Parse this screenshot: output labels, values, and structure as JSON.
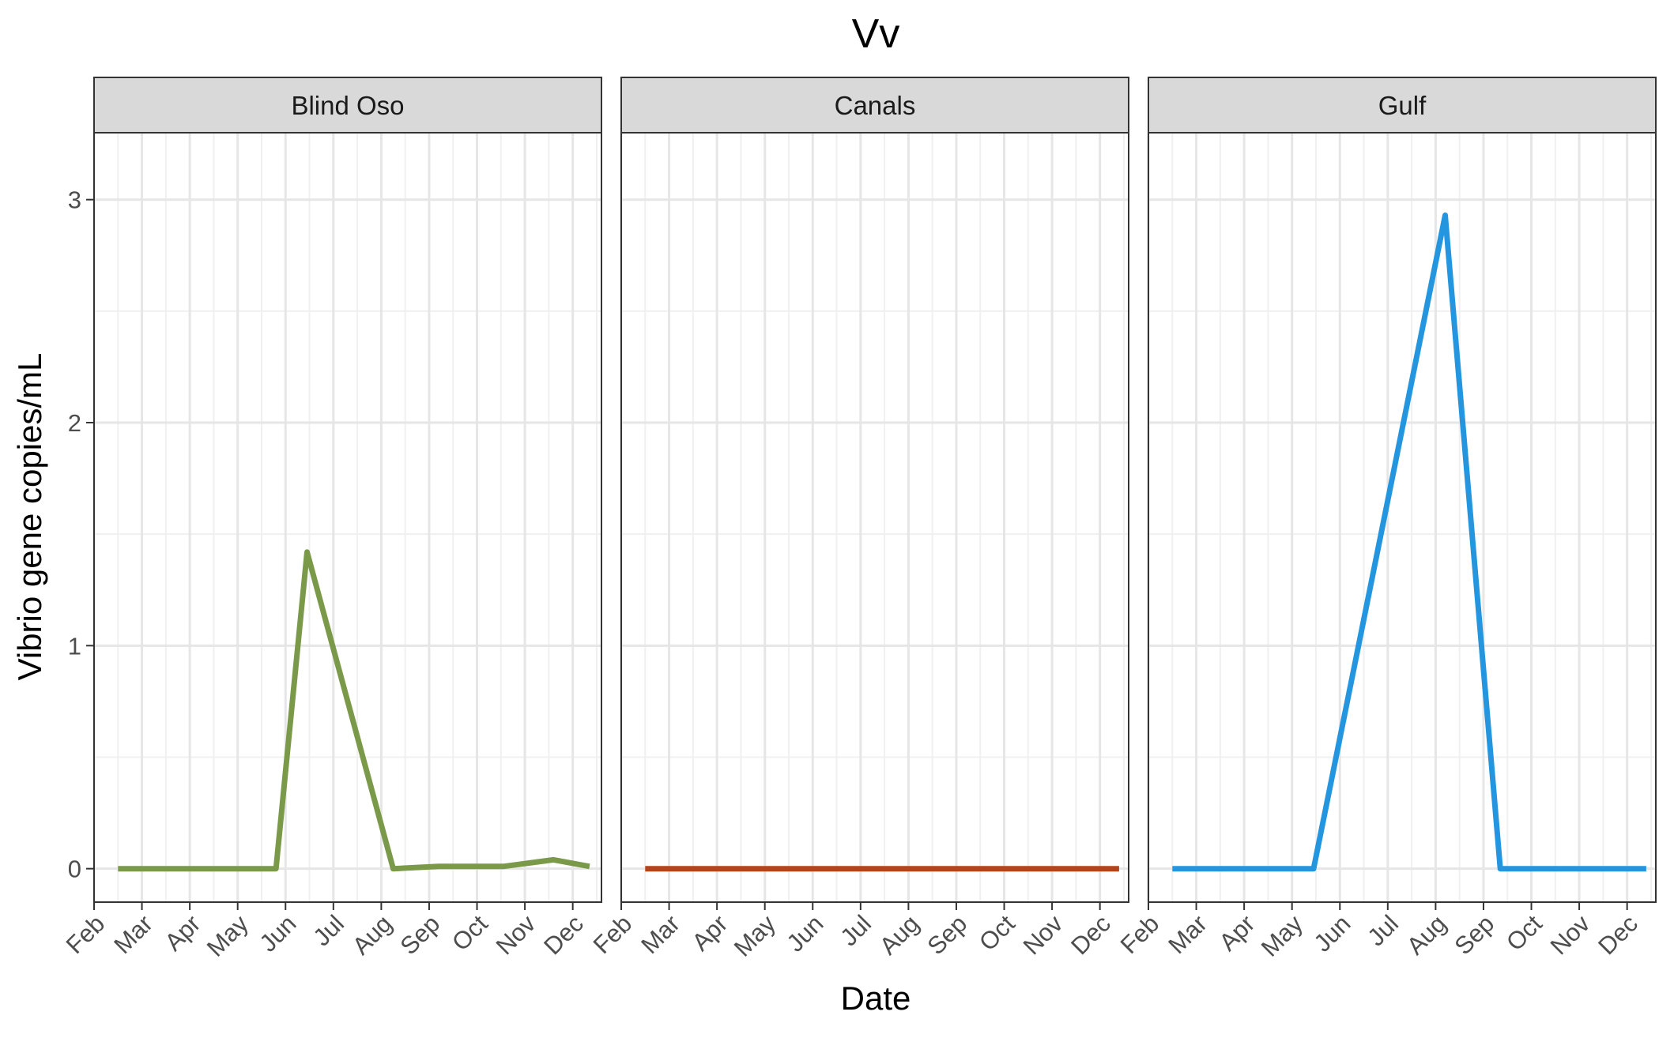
{
  "chart_data": {
    "type": "line",
    "title": "Vv",
    "xlabel": "Date",
    "ylabel": "Vibrio gene copies/mL",
    "ylim": [
      -0.15,
      3.3
    ],
    "y_ticks": [
      0,
      1,
      2,
      3
    ],
    "x_ticks": [
      "Feb",
      "Mar",
      "Apr",
      "May",
      "Jun",
      "Jul",
      "Aug",
      "Sep",
      "Oct",
      "Nov",
      "Dec"
    ],
    "x_range_months": [
      2.0,
      12.6
    ],
    "grid": true,
    "legend": "none",
    "panels": [
      {
        "name": "Blind Oso",
        "color": "#7A9A4A",
        "x": [
          2.5,
          3.5,
          4.5,
          5.8,
          6.45,
          8.25,
          9.2,
          10.55,
          11.6,
          12.35
        ],
        "y": [
          0,
          0,
          0,
          0,
          1.42,
          0,
          0.01,
          0.01,
          0.04,
          0.01
        ]
      },
      {
        "name": "Canals",
        "color": "#B5441A",
        "x": [
          2.5,
          3.5,
          4.5,
          5.5,
          6.5,
          7.5,
          8.5,
          9.5,
          10.5,
          11.5,
          12.4
        ],
        "y": [
          0,
          0,
          0,
          0,
          0,
          0,
          0,
          0,
          0,
          0,
          0
        ]
      },
      {
        "name": "Gulf",
        "color": "#2496E0",
        "x": [
          2.5,
          3.5,
          4.5,
          5.45,
          8.2,
          9.35,
          10.5,
          11.5,
          12.4
        ],
        "y": [
          0,
          0,
          0,
          0,
          2.93,
          0,
          0,
          0,
          0
        ]
      }
    ]
  }
}
